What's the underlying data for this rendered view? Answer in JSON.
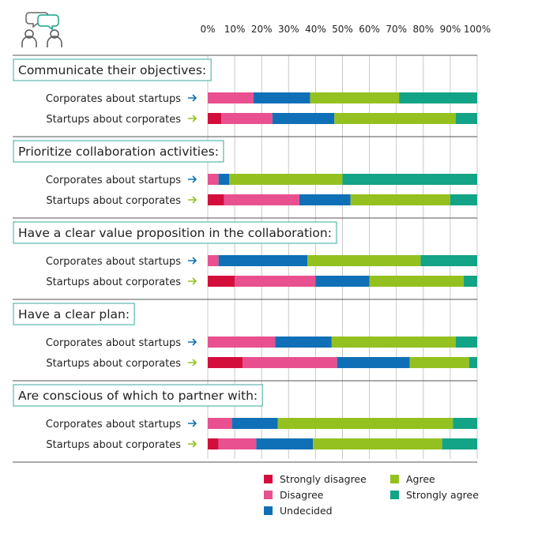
{
  "chart_data": {
    "type": "bar",
    "orientation": "horizontal",
    "stacked": true,
    "xlim": [
      0,
      100
    ],
    "x_ticks": [
      "0%",
      "10%",
      "20%",
      "30%",
      "40%",
      "50%",
      "60%",
      "70%",
      "80%",
      "90%",
      "100%"
    ],
    "grid": true,
    "legend_position": "bottom",
    "series_colors": {
      "Strongly disagree": "#d40e3c",
      "Disagree": "#e8508f",
      "Undecided": "#0f70b7",
      "Agree": "#94c11f",
      "Strongly agree": "#13a386"
    },
    "legend": [
      {
        "name": "Strongly disagree",
        "color": "#d40e3c"
      },
      {
        "name": "Disagree",
        "color": "#e8508f"
      },
      {
        "name": "Undecided",
        "color": "#0f70b7"
      },
      {
        "name": "Agree",
        "color": "#94c11f"
      },
      {
        "name": "Strongly agree",
        "color": "#13a386"
      }
    ],
    "groups": [
      {
        "title": "Communicate their objectives:",
        "rows": [
          {
            "label": "Corporates about startups",
            "arrow_color": "#0f70b7",
            "values": [
              0,
              17,
              21,
              33,
              29
            ]
          },
          {
            "label": "Startups about corporates",
            "arrow_color": "#94c11f",
            "values": [
              5,
              19,
              23,
              45,
              8
            ]
          }
        ]
      },
      {
        "title": "Prioritize collaboration activities:",
        "rows": [
          {
            "label": "Corporates about startups",
            "arrow_color": "#0f70b7",
            "values": [
              0,
              4,
              4,
              42,
              50
            ]
          },
          {
            "label": "Startups about corporates",
            "arrow_color": "#94c11f",
            "values": [
              6,
              28,
              19,
              37,
              10
            ]
          }
        ]
      },
      {
        "title": "Have a clear value proposition in the collaboration:",
        "rows": [
          {
            "label": "Corporates about startups",
            "arrow_color": "#0f70b7",
            "values": [
              0,
              4,
              33,
              42,
              21
            ]
          },
          {
            "label": "Startups about corporates",
            "arrow_color": "#94c11f",
            "values": [
              10,
              30,
              20,
              35,
              5
            ]
          }
        ]
      },
      {
        "title": "Have a clear plan:",
        "rows": [
          {
            "label": "Corporates about startups",
            "arrow_color": "#0f70b7",
            "values": [
              0,
              25,
              21,
              46,
              8
            ]
          },
          {
            "label": "Startups about corporates",
            "arrow_color": "#94c11f",
            "values": [
              13,
              35,
              27,
              22,
              3
            ]
          }
        ]
      },
      {
        "title": "Are conscious of which to partner with:",
        "rows": [
          {
            "label": "Corporates about startups",
            "arrow_color": "#0f70b7",
            "values": [
              0,
              9,
              17,
              65,
              9
            ]
          },
          {
            "label": "Startups about corporates",
            "arrow_color": "#94c11f",
            "values": [
              4,
              14,
              21,
              48,
              13
            ]
          }
        ]
      }
    ]
  },
  "icons": {
    "header": "people-chat-icon"
  }
}
